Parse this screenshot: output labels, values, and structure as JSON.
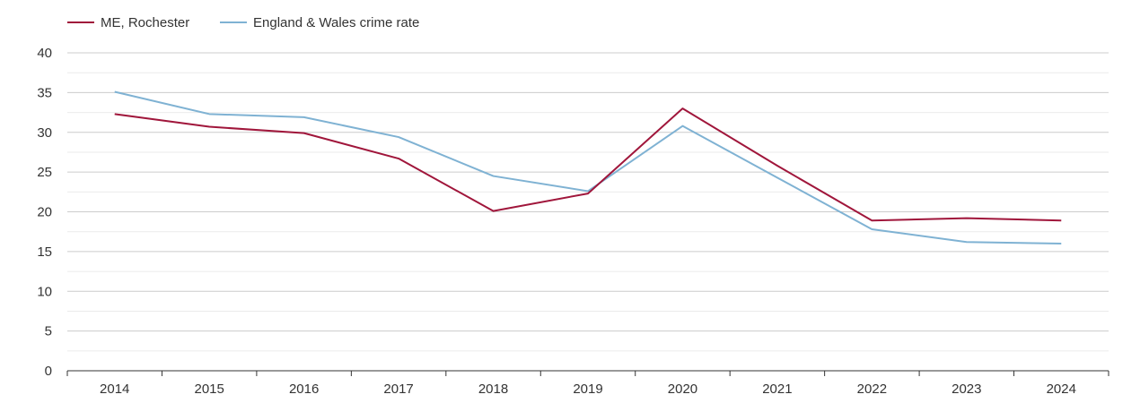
{
  "chart_data": {
    "type": "line",
    "title": "",
    "xlabel": "",
    "ylabel": "",
    "categories": [
      "2014",
      "2015",
      "2016",
      "2017",
      "2018",
      "2019",
      "2020",
      "2021",
      "2022",
      "2023",
      "2024"
    ],
    "ylim": [
      0,
      40
    ],
    "yticks": [
      0,
      5,
      10,
      15,
      20,
      25,
      30,
      35,
      40
    ],
    "grid": true,
    "legend_position": "top-left",
    "series": [
      {
        "name": "ME, Rochester",
        "color": "#a0163b",
        "values": [
          32.3,
          30.7,
          29.9,
          26.7,
          20.1,
          22.3,
          33.0,
          25.8,
          18.9,
          19.2,
          18.9
        ]
      },
      {
        "name": "England & Wales crime rate",
        "color": "#7fb2d3",
        "values": [
          35.1,
          32.3,
          31.9,
          29.4,
          24.5,
          22.6,
          30.8,
          24.3,
          17.8,
          16.2,
          16.0
        ]
      }
    ]
  }
}
